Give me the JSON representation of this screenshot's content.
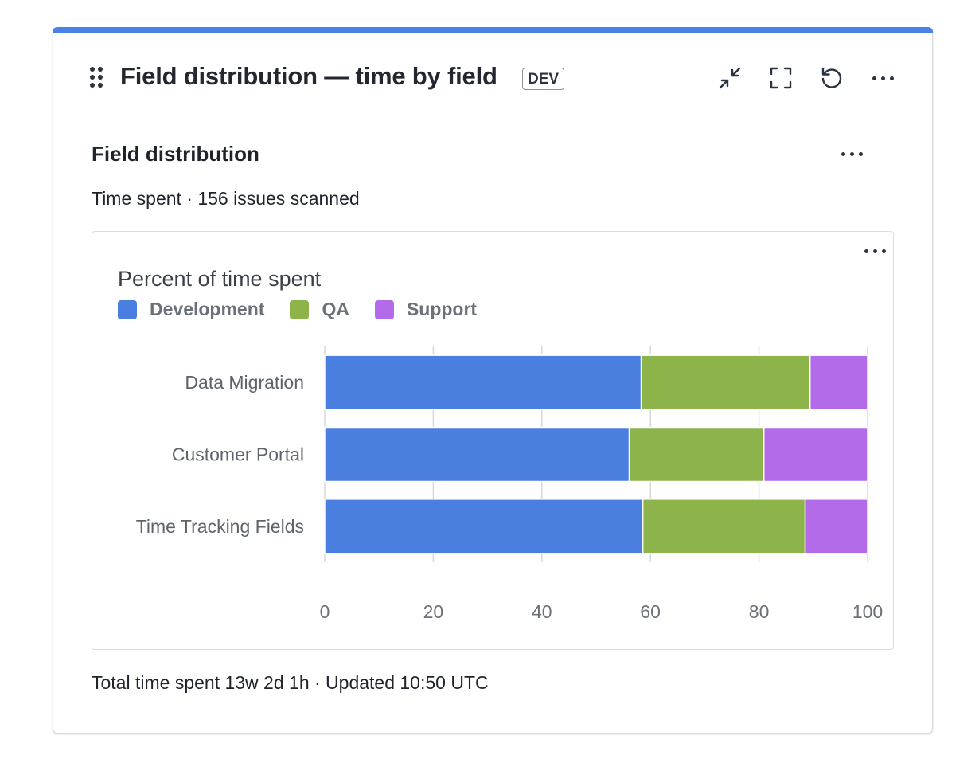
{
  "gadget": {
    "title": "Field distribution — time by field",
    "env_badge": "DEV",
    "toolbar": {
      "collapse_icon": "collapse-arrows-icon",
      "fullscreen_icon": "fullscreen-icon",
      "refresh_icon": "refresh-icon",
      "more_icon": "more-horizontal-icon"
    },
    "accent_color": "#4a81e6"
  },
  "section": {
    "title": "Field distribution",
    "subtitle": "Time spent · 156 issues scanned"
  },
  "chart_data": {
    "type": "bar",
    "orientation": "horizontal",
    "stacked": true,
    "title": "Percent of time spent",
    "categories": [
      "Data Migration",
      "Customer Portal",
      "Time Tracking Fields"
    ],
    "series": [
      {
        "name": "Development",
        "color": "#4a7fe0",
        "values": [
          58.3,
          56.1,
          58.6
        ]
      },
      {
        "name": "QA",
        "color": "#8db34b",
        "values": [
          31.1,
          24.8,
          29.9
        ]
      },
      {
        "name": "Support",
        "color": "#b36bea",
        "values": [
          10.6,
          19.1,
          11.5
        ]
      }
    ],
    "xlim": [
      0,
      100
    ],
    "xticks": [
      "0",
      "20",
      "40",
      "60",
      "80",
      "100"
    ],
    "grid": true,
    "legend_position": "top-left"
  },
  "footer": {
    "text": "Total time spent 13w 2d 1h · Updated 10:50 UTC"
  }
}
